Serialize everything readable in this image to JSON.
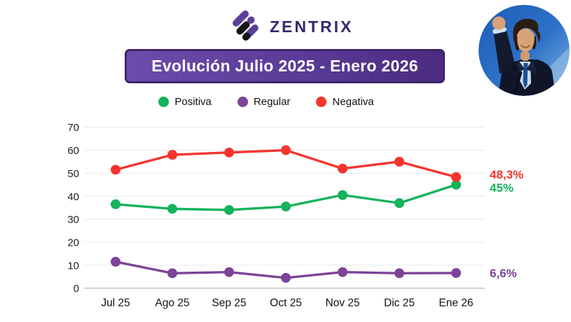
{
  "brand": {
    "name": "ZENTRIX",
    "text_color": "#37276f",
    "stripe_purple": "#5b3f99",
    "stripe_black": "#161616"
  },
  "header": {
    "title": "Evolución Julio 2025 - Enero 2026",
    "banner_gradient": [
      "#6b4dab",
      "#4b2b80"
    ],
    "banner_border": "#3f2568",
    "text_color": "#ffffff"
  },
  "chart_data": {
    "type": "line",
    "title": "Evolución Julio 2025 - Enero 2026",
    "categories": [
      "Jul 25",
      "Ago 25",
      "Sep 25",
      "Oct 25",
      "Nov 25",
      "Dic 25",
      "Ene 26"
    ],
    "series": [
      {
        "name": "Positiva",
        "color": "#15b35b",
        "values": [
          36.5,
          34.5,
          34,
          35.5,
          40.5,
          37,
          45
        ],
        "end_label": "45%"
      },
      {
        "name": "Regular",
        "color": "#7c4398",
        "values": [
          11.5,
          6.5,
          7,
          4.5,
          7,
          6.5,
          6.6
        ],
        "end_label": "6,6%"
      },
      {
        "name": "Negativa",
        "color": "#f5342e",
        "values": [
          51.5,
          58,
          59,
          60,
          52,
          55,
          48.3
        ],
        "end_label": "48,3%"
      }
    ],
    "ylim": [
      0,
      70
    ],
    "yticks": [
      0,
      10,
      20,
      30,
      40,
      50,
      60,
      70
    ],
    "grid": true,
    "legend_position": "top",
    "xlabel": "",
    "ylabel": ""
  }
}
